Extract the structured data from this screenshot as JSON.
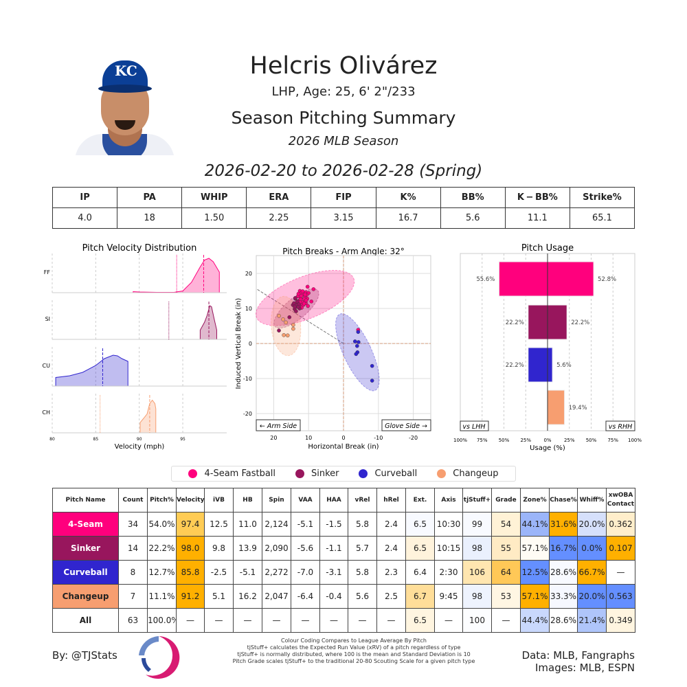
{
  "header": {
    "name": "Helcris Olivárez",
    "bio": "LHP, Age: 25, 6' 2\"/233",
    "title": "Season Pitching Summary",
    "season": "2026 MLB Season",
    "dates": "2026-02-20 to 2026-02-28 (Spring)",
    "cap_logo": "KC"
  },
  "stats": {
    "headers": [
      "IP",
      "PA",
      "WHIP",
      "ERA",
      "FIP",
      "K%",
      "BB%",
      "K − BB%",
      "Strike%"
    ],
    "values": [
      "4.0",
      "18",
      "1.50",
      "2.25",
      "3.15",
      "16.7",
      "5.6",
      "11.1",
      "65.1"
    ]
  },
  "pitch_colors": {
    "FF": "#FF007D",
    "SI": "#98165D",
    "CU": "#3025CE",
    "CH": "#F79E70"
  },
  "chart_data": [
    {
      "type": "area",
      "title": "Pitch Velocity Distribution",
      "xlabel": "Velocity (mph)",
      "xlim": [
        80,
        100
      ],
      "xticks": [
        "80",
        "85",
        "90",
        "95"
      ],
      "grid": true,
      "series": [
        {
          "name": "FF",
          "pitcher_avg": 97.4,
          "league_avg": 94.3,
          "density": [
            [
              89.3,
              0.03
            ],
            [
              90,
              0.02
            ],
            [
              92,
              0.01
            ],
            [
              94,
              0.01
            ],
            [
              95,
              0.05
            ],
            [
              96,
              0.3
            ],
            [
              97,
              0.75
            ],
            [
              97.5,
              0.95
            ],
            [
              98,
              1
            ],
            [
              98.5,
              0.9
            ],
            [
              99.2,
              0.6
            ]
          ]
        },
        {
          "name": "SI",
          "pitcher_avg": 98.0,
          "league_avg": 93.4,
          "density": [
            [
              97.0,
              0.27
            ],
            [
              97.5,
              0.5
            ],
            [
              97.8,
              0.7
            ],
            [
              98.1,
              0.98
            ],
            [
              98.3,
              0.95
            ],
            [
              98.6,
              0.6
            ],
            [
              98.9,
              0.27
            ]
          ]
        },
        {
          "name": "CU",
          "pitcher_avg": 85.8,
          "league_avg": null,
          "density": [
            [
              80.4,
              0.25
            ],
            [
              82,
              0.3
            ],
            [
              83.5,
              0.4
            ],
            [
              85,
              0.6
            ],
            [
              86,
              0.8
            ],
            [
              87,
              0.9
            ],
            [
              87.5,
              0.88
            ],
            [
              88,
              0.8
            ],
            [
              88.7,
              0.72
            ]
          ]
        },
        {
          "name": "CH",
          "pitcher_avg": 91.2,
          "league_avg": 85.5,
          "density": [
            [
              90.1,
              0.3
            ],
            [
              90.5,
              0.42
            ],
            [
              90.9,
              0.55
            ],
            [
              91.2,
              0.85
            ],
            [
              91.5,
              0.95
            ],
            [
              91.8,
              0.85
            ],
            [
              91.9,
              0.7
            ]
          ]
        }
      ]
    },
    {
      "type": "scatter",
      "title": "Pitch Breaks - Arm Angle: 32°",
      "xlabel": "Horizontal Break (in)",
      "ylabel": "Induced Vertical Break (in)",
      "xlim": [
        25,
        -25
      ],
      "ylim": [
        -25,
        25
      ],
      "xticks": [
        20,
        10,
        0,
        -10,
        -20
      ],
      "yticks": [
        20,
        10,
        0,
        -10,
        -20
      ],
      "arm_angle": 32,
      "grid": true,
      "annotations": [
        "← Arm Side",
        "Glove Side →"
      ],
      "series": [
        {
          "name": "FF",
          "points": [
            [
              12.5,
              15
            ],
            [
              10.3,
              16.2
            ],
            [
              8.6,
              15.5
            ],
            [
              12,
              14.5
            ],
            [
              11.5,
              14
            ],
            [
              10.8,
              14.6
            ],
            [
              10,
              14.4
            ],
            [
              13,
              13.5
            ],
            [
              11,
              13.3
            ],
            [
              12.2,
              13
            ],
            [
              10.4,
              12.8
            ],
            [
              11.2,
              12.7
            ],
            [
              9.2,
              12
            ],
            [
              12.6,
              12.3
            ],
            [
              11.8,
              11.8
            ],
            [
              10.8,
              11.5
            ],
            [
              12.4,
              11.2
            ],
            [
              11.5,
              11
            ],
            [
              10.2,
              10.7
            ],
            [
              12,
              10.2
            ],
            [
              13.2,
              10.5
            ],
            [
              11,
              12
            ],
            [
              12.9,
              14.2
            ],
            [
              11.7,
              14.9
            ],
            [
              10.6,
              13.9
            ],
            [
              12.3,
              12.6
            ],
            [
              11.3,
              11.4
            ],
            [
              12.8,
              10.9
            ],
            [
              13.5,
              11.6
            ],
            [
              10.7,
              12.3
            ],
            [
              -4.2,
              3.9
            ],
            [
              12.1,
              13.6
            ],
            [
              11,
              14
            ],
            [
              12.5,
              11.8
            ]
          ]
        },
        {
          "name": "SI",
          "points": [
            [
              13.8,
              12.8
            ],
            [
              13.2,
              12
            ],
            [
              14.5,
              11
            ],
            [
              13.5,
              11
            ],
            [
              12.8,
              11.2
            ],
            [
              14,
              9.8
            ],
            [
              13.6,
              9.2
            ],
            [
              14,
              10.5
            ],
            [
              12.6,
              10
            ],
            [
              13,
              10.4
            ],
            [
              15.5,
              7.5
            ],
            [
              18.5,
              3.7
            ],
            [
              13.8,
              13
            ],
            [
              14.2,
              11.5
            ]
          ]
        },
        {
          "name": "CU",
          "points": [
            [
              -4.2,
              3.3
            ],
            [
              -3.3,
              0.6
            ],
            [
              -4.3,
              0.4
            ],
            [
              -3.9,
              -0.7
            ],
            [
              -4,
              -2.5
            ],
            [
              -3.6,
              -3
            ],
            [
              -8.2,
              -6.4
            ],
            [
              -8.2,
              -10.6
            ]
          ]
        },
        {
          "name": "CH",
          "points": [
            [
              18.5,
              7.9
            ],
            [
              17.3,
              6.9
            ],
            [
              14.4,
              5.3
            ],
            [
              14.4,
              4.2
            ],
            [
              17.1,
              2.4
            ],
            [
              16,
              2.3
            ],
            [
              16.5,
              6
            ]
          ]
        }
      ]
    },
    {
      "type": "bar",
      "title": "Pitch Usage",
      "xlabel": "Usage (%)",
      "xlim": [
        -100,
        100
      ],
      "xticks": [
        "100%",
        "75%",
        "50%",
        "25%",
        "0%",
        "25%",
        "50%",
        "75%",
        "100%"
      ],
      "annotations": [
        "vs LHH",
        "vs RHH"
      ],
      "categories": [
        "FF",
        "SI",
        "CU",
        "CH"
      ],
      "series": [
        {
          "name": "vs LHH",
          "values": [
            55.6,
            22.2,
            22.2,
            0
          ]
        },
        {
          "name": "vs RHH",
          "values": [
            52.8,
            22.2,
            5.6,
            19.4
          ]
        }
      ],
      "labels_lhh": [
        "55.6%",
        "22.2%",
        "22.2%",
        ""
      ],
      "labels_rhh": [
        "52.8%",
        "22.2%",
        "5.6%",
        "19.4%"
      ]
    }
  ],
  "legend": [
    {
      "label": "4-Seam Fastball",
      "key": "FF"
    },
    {
      "label": "Sinker",
      "key": "SI"
    },
    {
      "label": "Curveball",
      "key": "CU"
    },
    {
      "label": "Changeup",
      "key": "CH"
    }
  ],
  "pitch_table": {
    "headers": [
      "Pitch Name",
      "Count",
      "Pitch%",
      "Velocity",
      "iVB",
      "HB",
      "Spin",
      "VAA",
      "HAA",
      "vRel",
      "hRel",
      "Ext.",
      "Axis",
      "tjStuff+",
      "Grade",
      "Zone%",
      "Chase%",
      "Whiff%",
      "xwOBA Contact"
    ],
    "rows": [
      {
        "values": [
          "4-Seam",
          "34",
          "54.0%",
          "97.4",
          "12.5",
          "11.0",
          "2,124",
          "-5.1",
          "-1.5",
          "5.8",
          "2.4",
          "6.5",
          "10:30",
          "99",
          "54",
          "44.1%",
          "31.6%",
          "20.0%",
          "0.362"
        ],
        "colors": {
          "0": "#FF007D",
          "3": "#FFCC55",
          "11": "#F8FAFF",
          "13": "#F8FAFF",
          "14": "#FFF2D6",
          "15": "#9BB5F9",
          "16": "#FFB000",
          "17": "#D6E0FB",
          "18": "#FFEECB"
        }
      },
      {
        "values": [
          "Sinker",
          "14",
          "22.2%",
          "98.0",
          "9.8",
          "13.9",
          "2,090",
          "-5.6",
          "-1.1",
          "5.7",
          "2.4",
          "6.5",
          "10:15",
          "98",
          "55",
          "57.1%",
          "16.7%",
          "0.0%",
          "0.107"
        ],
        "colors": {
          "0": "#98165D",
          "3": "#FFB000",
          "11": "#FFF3DC",
          "13": "#EAF0FD",
          "14": "#FFEBC4",
          "15": "#FFFCF5",
          "16": "#648FFF",
          "17": "#648FFF",
          "18": "#FFB000"
        }
      },
      {
        "values": [
          "Curveball",
          "8",
          "12.7%",
          "85.8",
          "-2.5",
          "-5.1",
          "2,272",
          "-7.0",
          "-3.1",
          "5.8",
          "2.3",
          "6.4",
          "2:30",
          "106",
          "64",
          "12.5%",
          "28.6%",
          "66.7%",
          "—"
        ],
        "colors": {
          "0": "#3025CE",
          "3": "#FFB000",
          "13": "#FFE6B0",
          "14": "#FFC857",
          "15": "#648FFF",
          "16": "#F8FAFF",
          "17": "#FFB000"
        }
      },
      {
        "values": [
          "Changeup",
          "7",
          "11.1%",
          "91.2",
          "5.1",
          "16.2",
          "2,047",
          "-6.4",
          "-0.4",
          "5.6",
          "2.5",
          "6.7",
          "9:45",
          "98",
          "53",
          "57.1%",
          "33.3%",
          "20.0%",
          "0.563"
        ],
        "colors": {
          "0": "#F79E70",
          "3": "#FFB000",
          "11": "#FFDE99",
          "13": "#EEF3FE",
          "14": "#FFF6E3",
          "15": "#FFB000",
          "16": "#F6F8FF",
          "17": "#648FFF",
          "18": "#648FFF"
        }
      },
      {
        "values": [
          "All",
          "63",
          "100.0%",
          "—",
          "—",
          "—",
          "—",
          "—",
          "—",
          "—",
          "—",
          "6.5",
          "—",
          "100",
          "—",
          "44.4%",
          "28.6%",
          "21.4%",
          "0.349"
        ],
        "colors": {
          "11": "#FFF5E0",
          "13": "#FCFDFF",
          "15": "#C9D8FC",
          "17": "#AFC5FA",
          "18": "#FFF5E0"
        }
      }
    ]
  },
  "footer": {
    "by": "By: @TJStats",
    "notes": [
      "Colour Coding Compares to League Average By Pitch",
      "tjStuff+ calculates the Expected Run Value (xRV) of a pitch regardless of type",
      "tjStuff+ is normally distributed, where 100 is the mean and Standard Deviation is 10",
      "Pitch Grade scales tjStuff+ to the traditional 20-80 Scouting Scale for a given pitch type"
    ],
    "data_source": "Data: MLB, Fangraphs",
    "image_source": "Images: MLB, ESPN"
  }
}
